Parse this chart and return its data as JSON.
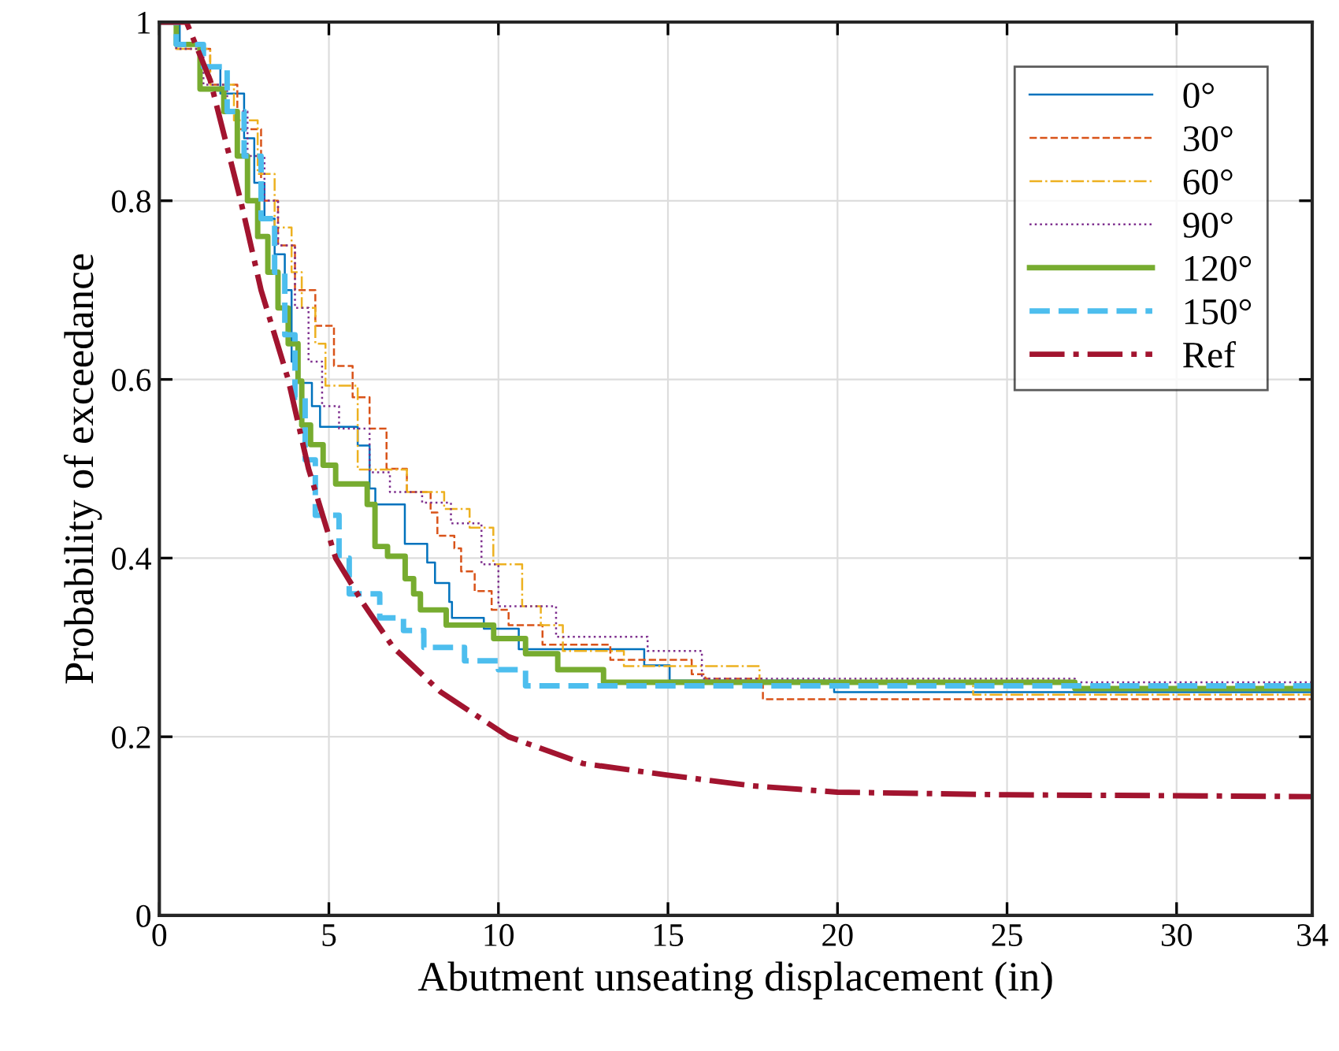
{
  "chart_data": {
    "type": "step",
    "xlabel": "Abutment unseating displacement (in)",
    "ylabel": "Probability of exceedance",
    "xlim": [
      0,
      34
    ],
    "ylim": [
      0,
      1
    ],
    "xticks": [
      0,
      5,
      10,
      15,
      20,
      25,
      30,
      34
    ],
    "yticks": [
      0,
      {
        "value": 0.2,
        "label": "0.2"
      },
      {
        "value": 0.4,
        "label": "0.4"
      },
      {
        "value": 0.6,
        "label": "0.6"
      },
      {
        "value": 0.8,
        "label": "0.8"
      },
      1
    ],
    "grid": true,
    "legend": "top right",
    "series": [
      {
        "name": "0°",
        "color": "#0072bd",
        "line_style": "solid",
        "x": [
          0,
          0.6,
          1.2,
          1.8,
          2.5,
          2.8,
          3.1,
          3.4,
          3.7,
          3.9,
          4.1,
          4.5,
          4.74,
          5.85,
          6.2,
          6.37,
          7.24,
          7.9,
          8.13,
          8.55,
          8.63,
          9.57,
          10.6,
          14.3,
          15.05,
          19.9,
          34
        ],
        "values": [
          1,
          0.975,
          0.95,
          0.92,
          0.87,
          0.82,
          0.78,
          0.74,
          0.7,
          0.62,
          0.596,
          0.57,
          0.547,
          0.526,
          0.478,
          0.46,
          0.416,
          0.395,
          0.372,
          0.351,
          0.333,
          0.321,
          0.298,
          0.28,
          0.263,
          0.25,
          0.25
        ]
      },
      {
        "name": "30°",
        "color": "#d95319",
        "line_style": "dashed",
        "x": [
          0,
          0.5,
          1.5,
          2.3,
          3.0,
          3.5,
          4.0,
          4.6,
          5.15,
          5.7,
          6.2,
          6.7,
          7.3,
          8.0,
          8.2,
          8.7,
          8.9,
          9.3,
          9.8,
          10.3,
          11.3,
          13.3,
          15.7,
          16.1,
          17.8,
          34
        ],
        "values": [
          1,
          0.97,
          0.93,
          0.88,
          0.8,
          0.75,
          0.7,
          0.66,
          0.615,
          0.58,
          0.545,
          0.5,
          0.474,
          0.451,
          0.425,
          0.411,
          0.385,
          0.363,
          0.342,
          0.325,
          0.303,
          0.286,
          0.27,
          0.265,
          0.242,
          0.242
        ]
      },
      {
        "name": "60°",
        "color": "#edb120",
        "line_style": "dashdot",
        "x": [
          0,
          0.5,
          1.5,
          2.2,
          2.9,
          3.4,
          3.9,
          4.2,
          4.6,
          4.9,
          5.85,
          7.3,
          8.4,
          9.15,
          9.85,
          10.7,
          11.25,
          11.9,
          13.7,
          17.7,
          24,
          34
        ],
        "values": [
          1,
          0.97,
          0.93,
          0.89,
          0.83,
          0.77,
          0.72,
          0.68,
          0.64,
          0.593,
          0.499,
          0.474,
          0.455,
          0.434,
          0.393,
          0.346,
          0.325,
          0.296,
          0.279,
          0.26,
          0.247,
          0.247
        ]
      },
      {
        "name": "90°",
        "color": "#7e2f8e",
        "line_style": "dotted",
        "x": [
          0,
          0.5,
          1.3,
          2.0,
          2.6,
          3.1,
          3.5,
          4.0,
          4.4,
          4.8,
          5.3,
          6.2,
          6.8,
          7.75,
          8.6,
          9.5,
          10.0,
          11.7,
          14.4,
          16.0,
          27,
          34
        ],
        "values": [
          1,
          0.97,
          0.93,
          0.9,
          0.85,
          0.8,
          0.75,
          0.68,
          0.62,
          0.57,
          0.545,
          0.496,
          0.474,
          0.462,
          0.439,
          0.393,
          0.346,
          0.312,
          0.296,
          0.265,
          0.261,
          0.261
        ]
      },
      {
        "name": "120°",
        "color": "#77ac30",
        "line_style": "solid",
        "x": [
          0,
          0.5,
          1.2,
          1.9,
          2.3,
          2.6,
          2.9,
          3.2,
          3.5,
          3.8,
          4.09,
          4.2,
          4.46,
          4.83,
          5.2,
          6.13,
          6.36,
          6.73,
          7.25,
          7.5,
          7.7,
          8.46,
          9.86,
          10.8,
          11.75,
          13.1,
          27,
          34
        ],
        "values": [
          1,
          0.975,
          0.925,
          0.9,
          0.85,
          0.8,
          0.76,
          0.72,
          0.68,
          0.64,
          0.598,
          0.549,
          0.527,
          0.504,
          0.483,
          0.46,
          0.413,
          0.402,
          0.377,
          0.36,
          0.342,
          0.325,
          0.31,
          0.293,
          0.275,
          0.261,
          0.254,
          0.254
        ]
      },
      {
        "name": "150°",
        "color": "#4dbeee",
        "line_style": "dashed",
        "x": [
          0,
          0.5,
          1.3,
          2.0,
          2.5,
          3.0,
          3.4,
          3.7,
          4.0,
          4.3,
          4.6,
          5.3,
          5.6,
          6.5,
          7.2,
          7.8,
          9.0,
          10.0,
          10.8,
          34
        ],
        "values": [
          1,
          0.975,
          0.95,
          0.9,
          0.85,
          0.78,
          0.72,
          0.65,
          0.58,
          0.51,
          0.448,
          0.4,
          0.36,
          0.333,
          0.319,
          0.3,
          0.285,
          0.275,
          0.257,
          0.257
        ]
      },
      {
        "name": "Ref",
        "type": "line",
        "color": "#a2142f",
        "line_style": "dashdot",
        "x": [
          0,
          0.8,
          1.5,
          2.4,
          3.0,
          3.8,
          4.4,
          5.2,
          6.0,
          6.9,
          8.3,
          10.3,
          12.5,
          15,
          17.5,
          20,
          25,
          30,
          34
        ],
        "values": [
          1,
          1,
          0.935,
          0.8,
          0.7,
          0.6,
          0.5,
          0.4,
          0.35,
          0.3,
          0.25,
          0.2,
          0.17,
          0.157,
          0.145,
          0.138,
          0.135,
          0.134,
          0.133
        ]
      }
    ]
  }
}
